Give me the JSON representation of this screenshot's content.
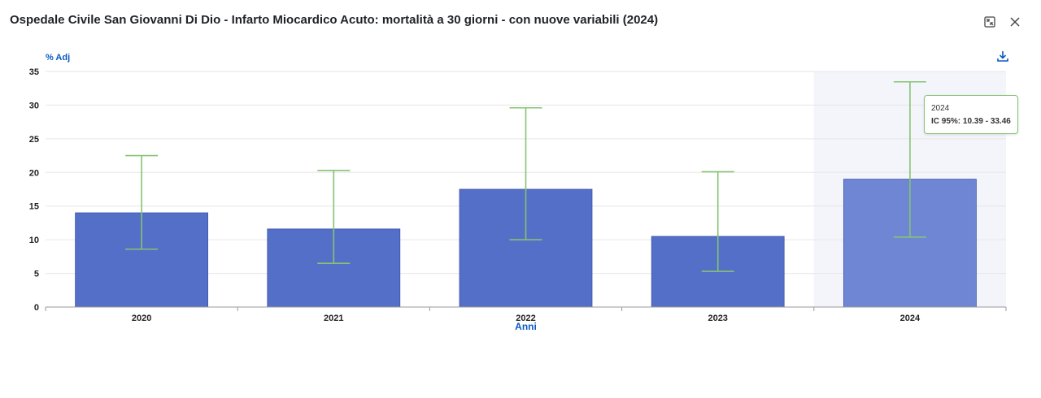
{
  "header": {
    "title": "Ospedale Civile San Giovanni Di Dio - Infarto Miocardico Acuto: mortalità a 30 giorni - con nuove variabili (2024)",
    "icons": {
      "expand": "collapse-icon",
      "close": "close-icon",
      "download": "download-icon"
    }
  },
  "colors": {
    "bar": "#536fc7",
    "bar_selected": "#6e86d3",
    "bar_stroke": "#3e55a8",
    "error_bar": "#86c373",
    "highlight_band": "#f4f5fa",
    "axis_label": "#0a59c2",
    "grid": "#e6e6e6",
    "text": "#222222"
  },
  "tooltip": {
    "title": "2024",
    "ic_text": "IC 95%: 10.39 - 33.46"
  },
  "chart_data": {
    "type": "bar",
    "title": "",
    "xlabel": "Anni",
    "ylabel": "% Adj",
    "categories": [
      "2020",
      "2021",
      "2022",
      "2023",
      "2024"
    ],
    "values": [
      14.0,
      11.6,
      17.5,
      10.5,
      19.0
    ],
    "error_low": [
      8.6,
      6.5,
      10.0,
      5.3,
      10.39
    ],
    "error_high": [
      22.5,
      20.3,
      29.6,
      20.1,
      33.46
    ],
    "ylim": [
      0,
      35
    ],
    "yticks": [
      "0",
      "5",
      "10",
      "15",
      "20",
      "25",
      "30",
      "35"
    ],
    "selected_category": "2024",
    "grid": true
  }
}
